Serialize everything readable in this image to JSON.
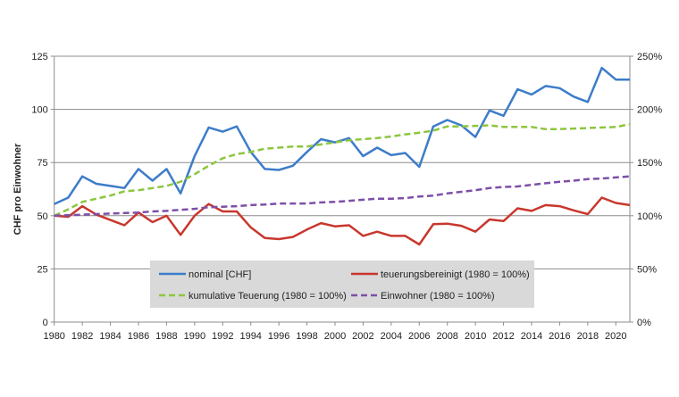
{
  "chart_data": {
    "type": "line",
    "ylabel": "CHF pro Einwohner",
    "ylim": [
      0,
      125
    ],
    "y2lim": [
      0,
      250
    ],
    "yticks": [
      "0",
      "25",
      "50",
      "75",
      "100",
      "125"
    ],
    "y2ticks": [
      "0%",
      "50%",
      "100%",
      "150%",
      "200%",
      "250%"
    ],
    "xlim": [
      1980,
      2021
    ],
    "xticks": [
      "1980",
      "1982",
      "1984",
      "1986",
      "1988",
      "1990",
      "1992",
      "1994",
      "1996",
      "1998",
      "2000",
      "2002",
      "2004",
      "2006",
      "2008",
      "2010",
      "2012",
      "2014",
      "2016",
      "2018",
      "2020"
    ],
    "grid": true,
    "legend_position": "bottom-center",
    "x": [
      1980,
      1981,
      1982,
      1983,
      1984,
      1985,
      1986,
      1987,
      1988,
      1989,
      1990,
      1991,
      1992,
      1993,
      1994,
      1995,
      1996,
      1997,
      1998,
      1999,
      2000,
      2001,
      2002,
      2003,
      2004,
      2005,
      2006,
      2007,
      2008,
      2009,
      2010,
      2011,
      2012,
      2013,
      2014,
      2015,
      2016,
      2017,
      2018,
      2019,
      2020,
      2021
    ],
    "series": [
      {
        "name": "nominal [CHF]",
        "axis": "left",
        "color": "#3d7cc9",
        "dash": false,
        "values": [
          55.5,
          58.5,
          68.5,
          65,
          64,
          63,
          72,
          66.5,
          72,
          60.5,
          78,
          91.5,
          89.5,
          92,
          80,
          72,
          71.5,
          73.5,
          80,
          86,
          84.5,
          86.5,
          78,
          82,
          78.5,
          79.5,
          73,
          92,
          95,
          92.5,
          87,
          99.5,
          97,
          109.5,
          107,
          111,
          110,
          106,
          103.5,
          119.5,
          114,
          114
        ]
      },
      {
        "name": "teuerungsbereinigt (1980 = 100%)",
        "axis": "right",
        "color": "#c8372d",
        "dash": false,
        "values": [
          100,
          99,
          109,
          101,
          96,
          91,
          103,
          94,
          100,
          82,
          100,
          111,
          104,
          104,
          89,
          79,
          78,
          80,
          87,
          93,
          90,
          91,
          81,
          85,
          81,
          81,
          73,
          92,
          92.5,
          90.5,
          85,
          96.5,
          95,
          107,
          104.5,
          110,
          109,
          105,
          101.5,
          117,
          112,
          110
        ]
      },
      {
        "name": "kumulative Teuerung (1980 = 100%)",
        "axis": "right",
        "color": "#8dc63f",
        "dash": true,
        "values": [
          100,
          106,
          113,
          116,
          119,
          123,
          124,
          126,
          128,
          132,
          139,
          147,
          154,
          158,
          160,
          163,
          164,
          165,
          165,
          167,
          169,
          171,
          172,
          173,
          174.5,
          176.5,
          178,
          180,
          184,
          184,
          184.5,
          185,
          183.5,
          183.5,
          183.5,
          181.5,
          181.5,
          182,
          182.5,
          183,
          183.5,
          186
        ]
      },
      {
        "name": "Einwohner (1980 = 100%)",
        "axis": "right",
        "color": "#7d4fa8",
        "dash": true,
        "values": [
          100,
          100.5,
          101,
          101.5,
          102,
          102.5,
          103,
          104,
          104.5,
          105.5,
          106.5,
          108,
          108.5,
          109,
          110,
          110.5,
          111.5,
          111.5,
          111.5,
          112.5,
          113,
          114,
          115,
          116,
          116,
          116.5,
          118,
          119,
          121,
          122.5,
          124,
          126,
          127,
          127.5,
          129,
          130.5,
          132,
          133,
          134.5,
          135,
          136,
          137
        ]
      }
    ]
  }
}
